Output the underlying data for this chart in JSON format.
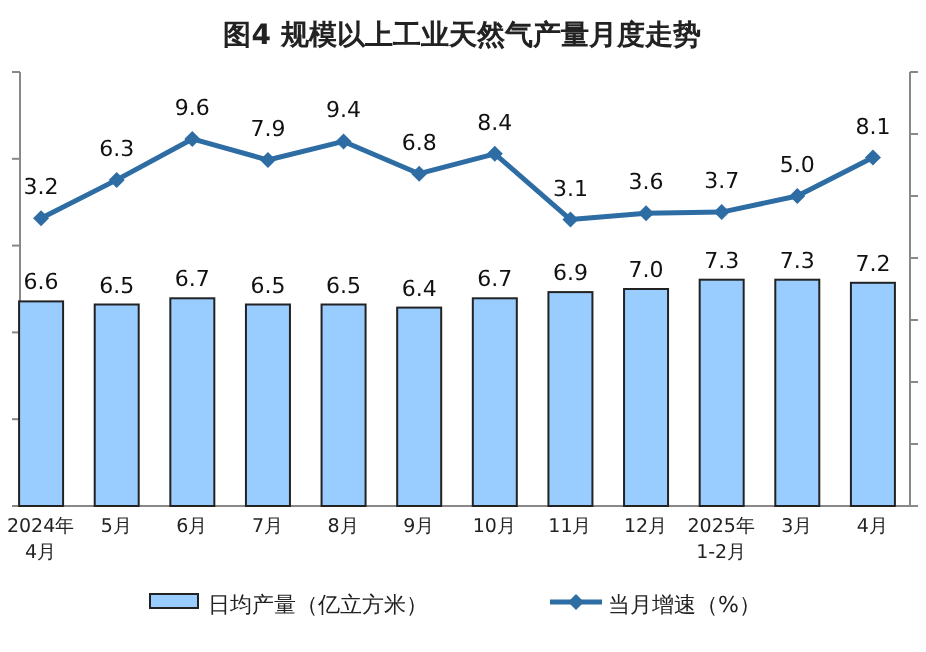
{
  "chart_data": {
    "type": "bar",
    "title": "图4  规模以上工业天然气产量月度走势",
    "categories": [
      "2024年\n4月",
      "5月",
      "6月",
      "7月",
      "8月",
      "9月",
      "10月",
      "11月",
      "12月",
      "2025年\n1-2月",
      "3月",
      "4月"
    ],
    "series": [
      {
        "name": "日均产量（亿立方米）",
        "color": "#99ccff",
        "values": [
          6.6,
          6.5,
          6.7,
          6.5,
          6.5,
          6.4,
          6.7,
          6.9,
          7.0,
          7.3,
          7.3,
          7.2
        ],
        "value_labels": [
          "6.6",
          "6.5",
          "6.7",
          "6.5",
          "6.5",
          "6.4",
          "6.7",
          "6.9",
          "7.0",
          "7.3",
          "7.3",
          "7.2"
        ]
      },
      {
        "name": "当月增速（%）",
        "type": "line",
        "axis": "y2",
        "color": "#2e6da4",
        "marker": "diamond",
        "values": [
          3.2,
          6.3,
          9.6,
          7.9,
          9.4,
          6.8,
          8.4,
          3.1,
          3.6,
          3.7,
          5.0,
          8.1
        ],
        "value_labels": [
          "3.2",
          "6.3",
          "9.6",
          "7.9",
          "9.4",
          "6.8",
          "8.4",
          "3.1",
          "3.6",
          "3.7",
          "5.0",
          "8.1"
        ]
      }
    ],
    "ylim": [
      0,
      14
    ],
    "yticks": [
      {
        "value": 0,
        "label": null
      },
      {
        "value": 2.8,
        "label": null
      },
      {
        "value": 5.6,
        "label": null
      },
      {
        "value": 8.4,
        "label": null
      },
      {
        "value": 11.2,
        "label": null
      },
      {
        "value": 14,
        "label": null
      }
    ],
    "y2lim": [
      -20,
      15
    ],
    "y2ticks": [
      {
        "value": -20,
        "label": null
      },
      {
        "value": -15,
        "label": null
      },
      {
        "value": -10,
        "label": null
      },
      {
        "value": -5,
        "label": null
      },
      {
        "value": 0,
        "label": null
      },
      {
        "value": 5,
        "label": null
      },
      {
        "value": 10,
        "label": null
      },
      {
        "value": 15,
        "label": null
      }
    ],
    "legend": "bottom",
    "grid": false
  }
}
